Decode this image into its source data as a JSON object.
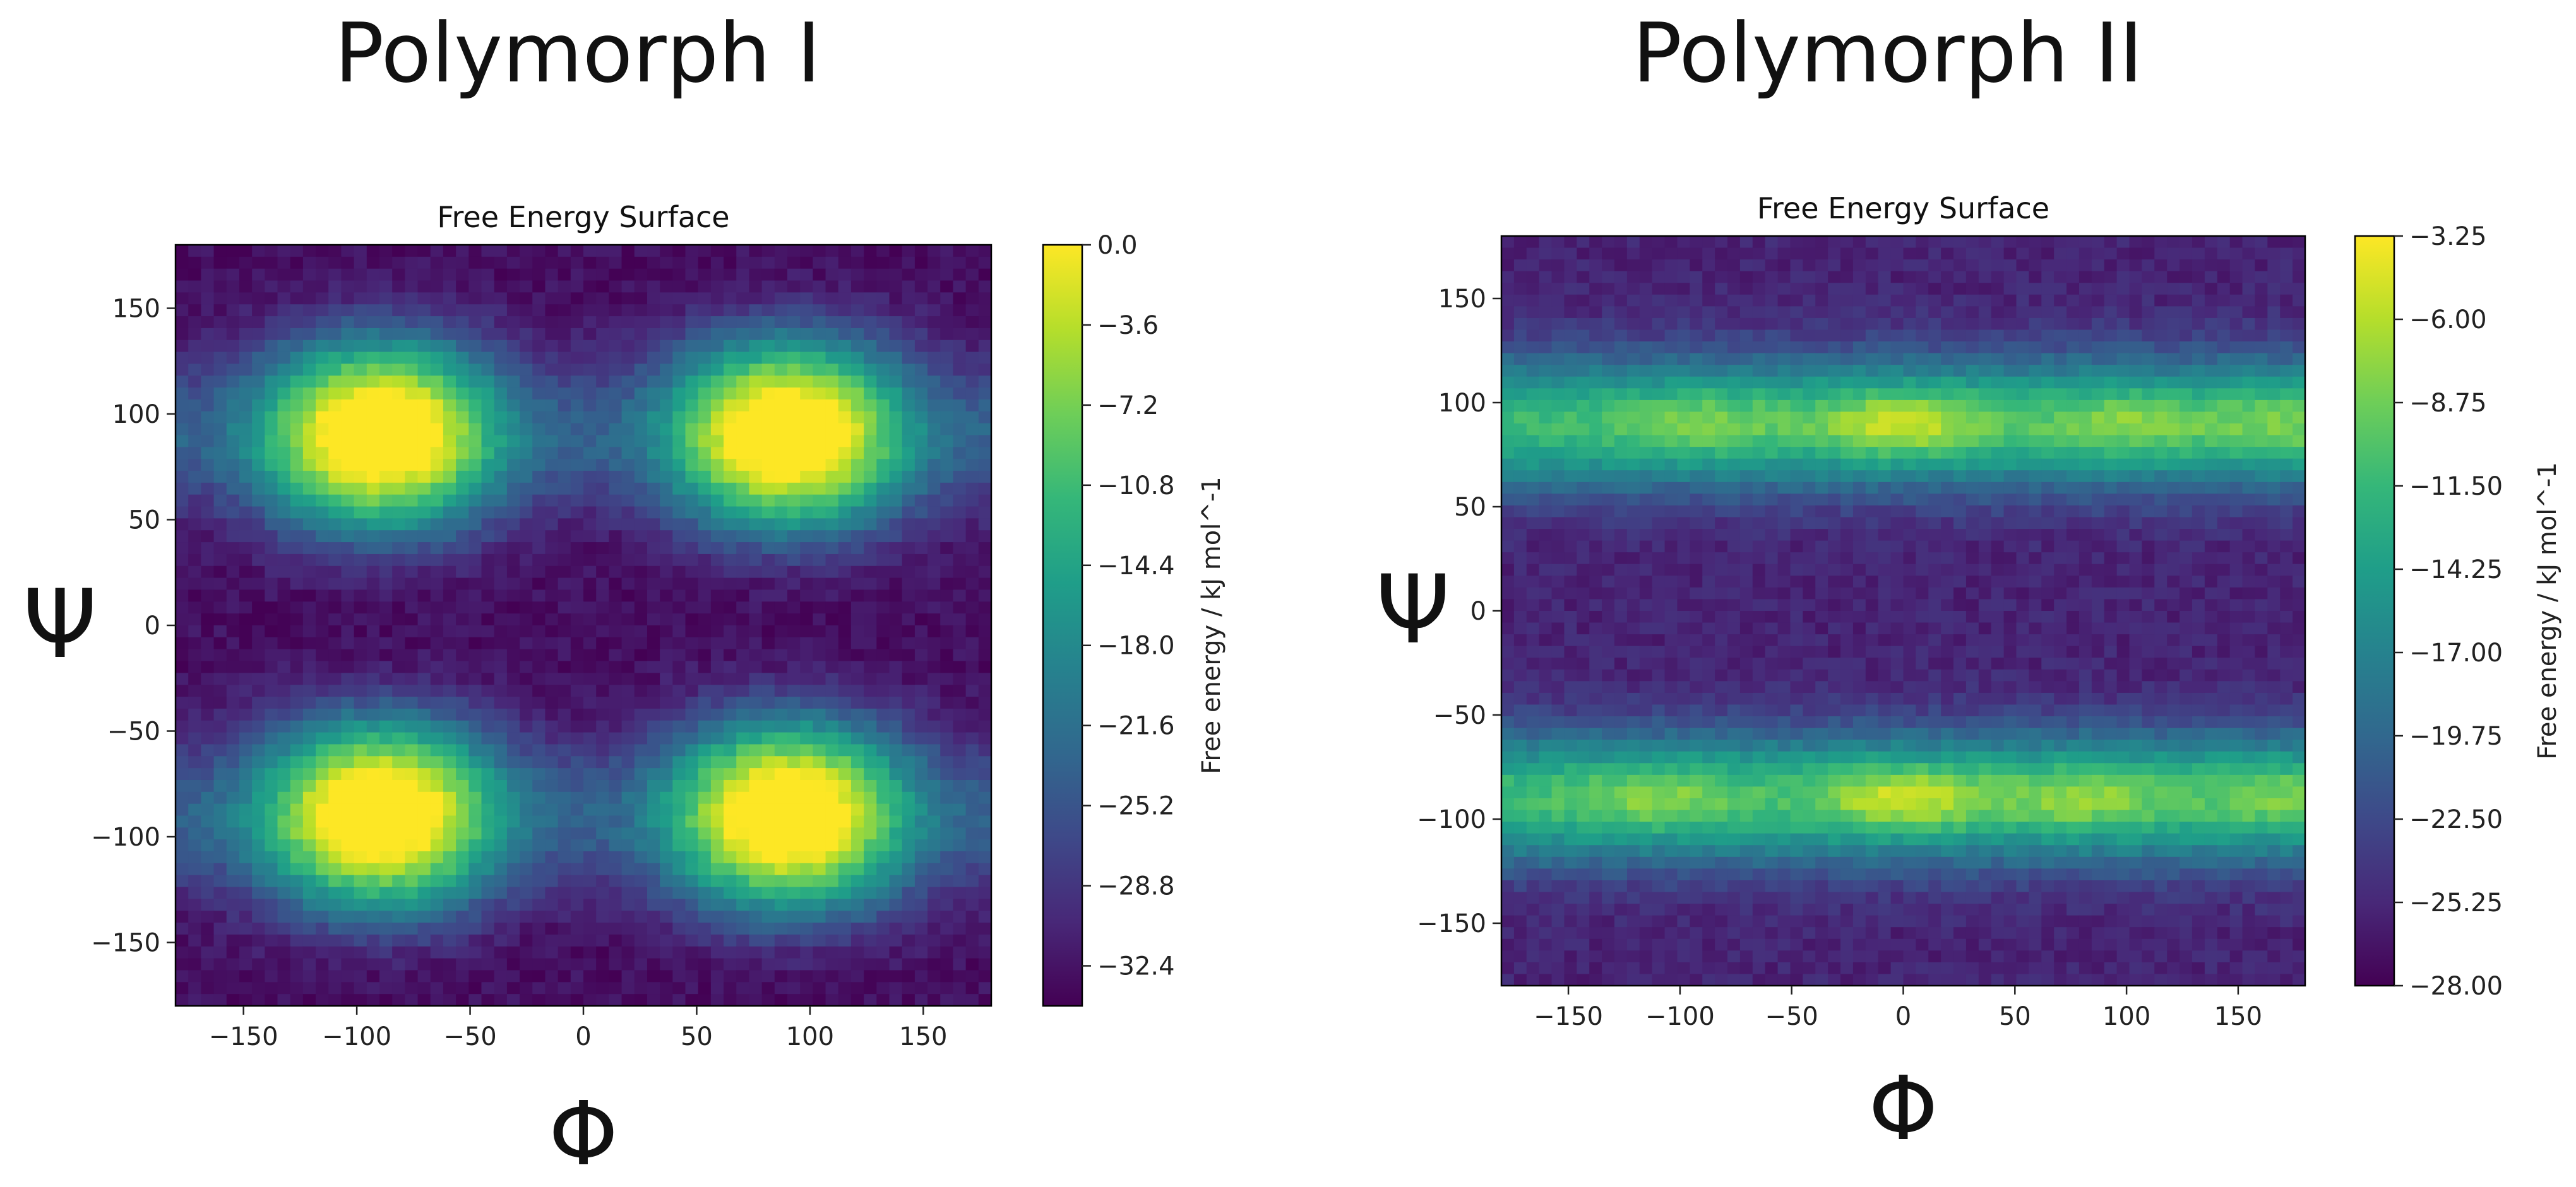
{
  "figure": {
    "panel_titles": [
      "Polymorph I",
      "Polymorph II"
    ],
    "x_symbol": "Φ",
    "y_symbol": "Ψ"
  },
  "colors": {
    "viridis": [
      "#440154",
      "#482878",
      "#3e4989",
      "#31688e",
      "#26828e",
      "#1f9e89",
      "#35b779",
      "#6ece58",
      "#b5de2b",
      "#fde725"
    ]
  },
  "chart_data": [
    {
      "type": "heatmap",
      "title": "Free Energy Surface",
      "xlabel": "",
      "ylabel": "",
      "xlim": [
        -180,
        180
      ],
      "ylim": [
        -180,
        180
      ],
      "xticks": [
        -150,
        -100,
        -50,
        0,
        50,
        100,
        150
      ],
      "yticks": [
        -150,
        -100,
        -50,
        0,
        50,
        100,
        150
      ],
      "colorbar": {
        "label": "Free energy / kJ mol^-1",
        "range": [
          -34.2,
          0.0
        ],
        "ticks": [
          0.0,
          -3.6,
          -7.2,
          -10.8,
          -14.4,
          -18.0,
          -21.6,
          -25.2,
          -28.8,
          -32.4
        ],
        "tick_labels": [
          "0.0",
          "−3.6",
          "−7.2",
          "−10.8",
          "−14.4",
          "−18.0",
          "−21.6",
          "−25.2",
          "−28.8",
          "−32.4"
        ]
      },
      "features": {
        "maxima": [
          {
            "phi": -90,
            "psi": 90,
            "value": 0.0
          },
          {
            "phi": 90,
            "psi": 90,
            "value": 0.0
          },
          {
            "phi": -90,
            "psi": -90,
            "value": 0.0
          },
          {
            "phi": 90,
            "psi": -90,
            "value": 0.0
          }
        ],
        "minima": [
          {
            "phi": 0,
            "psi": 0,
            "value": -33
          },
          {
            "phi": -180,
            "psi": 0,
            "value": -31
          },
          {
            "phi": 180,
            "psi": 0,
            "value": -31
          },
          {
            "phi": 0,
            "psi": 180,
            "value": -33
          },
          {
            "phi": 0,
            "psi": -180,
            "value": -33
          },
          {
            "phi": -180,
            "psi": 180,
            "value": -31
          },
          {
            "phi": 180,
            "psi": 180,
            "value": -31
          },
          {
            "phi": -180,
            "psi": -180,
            "value": -31
          },
          {
            "phi": 180,
            "psi": -180,
            "value": -31
          }
        ]
      }
    },
    {
      "type": "heatmap",
      "title": "Free Energy Surface",
      "xlabel": "",
      "ylabel": "",
      "xlim": [
        -180,
        180
      ],
      "ylim": [
        -180,
        180
      ],
      "xticks": [
        -150,
        -100,
        -50,
        0,
        50,
        100,
        150
      ],
      "yticks": [
        -150,
        -100,
        -50,
        0,
        50,
        100,
        150
      ],
      "colorbar": {
        "label": "Free energy / kJ mol^-1",
        "range": [
          -28.0,
          -3.25
        ],
        "ticks": [
          -3.25,
          -6.0,
          -8.75,
          -11.5,
          -14.25,
          -17.0,
          -19.75,
          -22.5,
          -25.25,
          -28.0
        ],
        "tick_labels": [
          "−3.25",
          "−6.00",
          "−8.75",
          "−11.50",
          "−14.25",
          "−17.00",
          "−19.75",
          "−22.50",
          "−25.25",
          "−28.00"
        ]
      },
      "features": {
        "high_bands": [
          {
            "psi": 90,
            "value": -6
          },
          {
            "psi": -90,
            "value": -6
          }
        ],
        "minima": [
          {
            "phi": -130,
            "psi": 0,
            "value": -26
          },
          {
            "phi": -50,
            "psi": 0,
            "value": -25
          },
          {
            "phi": 60,
            "psi": 0,
            "value": -27
          },
          {
            "phi": 130,
            "psi": 0,
            "value": -26
          },
          {
            "phi": -150,
            "psi": -150,
            "value": -27
          },
          {
            "phi": 0,
            "psi": -160,
            "value": -25
          },
          {
            "phi": 130,
            "psi": -150,
            "value": -26
          },
          {
            "phi": -130,
            "psi": 160,
            "value": -26
          },
          {
            "phi": 60,
            "psi": 160,
            "value": -26
          }
        ]
      }
    }
  ]
}
